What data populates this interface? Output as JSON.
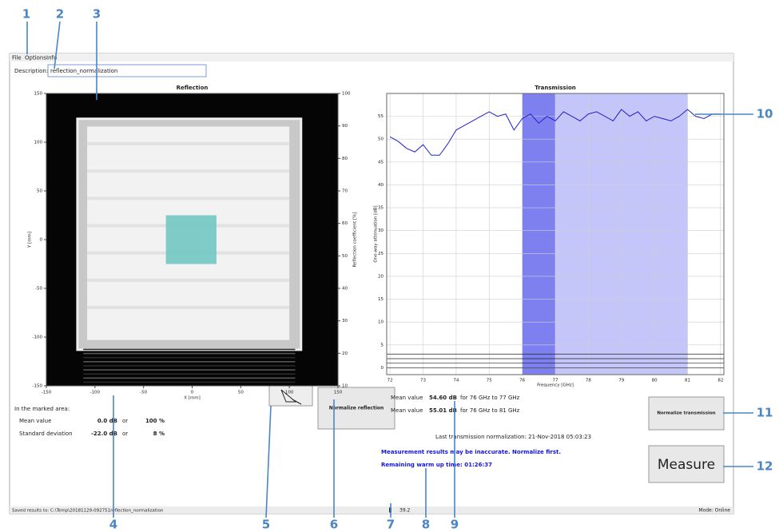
{
  "callouts": [
    "1",
    "2",
    "3",
    "4",
    "5",
    "6",
    "7",
    "8",
    "9",
    "10",
    "11",
    "12"
  ],
  "menu": [
    "File",
    "Options",
    "Info"
  ],
  "description": {
    "label": "Description:",
    "value": "reflection_normalization"
  },
  "chart_data": [
    {
      "type": "heatmap",
      "title": "Reflection",
      "x_label": "X [mm]",
      "y_label": "Y [mm]",
      "colorbar_label": "Reflection coefficient [%]",
      "xlim": [
        -150,
        150
      ],
      "ylim": [
        -150,
        150
      ],
      "xticks": [
        -150,
        -100,
        -50,
        0,
        50,
        100,
        150
      ],
      "yticks": [
        150,
        100,
        50,
        0,
        -50,
        -100,
        -150
      ],
      "colorbar_lim": [
        10,
        100
      ],
      "colorbar_ticks": [
        100,
        90,
        80,
        70,
        60,
        50,
        40,
        30,
        20,
        10
      ],
      "marked_area": {
        "x": [
          -27,
          25
        ],
        "y": [
          -25,
          25
        ],
        "color": "#72c6c2"
      }
    },
    {
      "type": "line",
      "title": "Transmission",
      "x_label": "Frequency [GHz]",
      "y_label": "One-way attenuation [dB]",
      "x": [
        72,
        72.25,
        72.5,
        72.75,
        73,
        73.25,
        73.5,
        73.75,
        74,
        74.25,
        74.5,
        74.75,
        75,
        75.25,
        75.5,
        75.75,
        76,
        76.25,
        76.5,
        76.75,
        77,
        77.25,
        77.5,
        77.75,
        78,
        78.25,
        78.5,
        78.75,
        79,
        79.25,
        79.5,
        79.75,
        80,
        80.25,
        80.5,
        80.75,
        81,
        81.25,
        81.5,
        81.75,
        82
      ],
      "series": [
        {
          "color": "#1f22d0",
          "values": [
            50.5,
            49.5,
            48,
            47.2,
            48.8,
            46.5,
            46.5,
            49,
            52,
            53,
            54,
            55,
            56,
            55,
            55.5,
            52,
            54.5,
            55.5,
            53.5,
            55,
            54,
            56,
            55,
            54,
            55.5,
            56,
            55,
            54,
            56.5,
            55,
            56,
            54,
            55,
            54.5,
            54,
            55,
            56.5,
            55,
            54.5,
            55.5,
            55.5
          ]
        }
      ],
      "xlim": [
        71.9,
        82.1
      ],
      "ylim": [
        -1.5,
        60
      ],
      "xticks": [
        72,
        73,
        74,
        75,
        76,
        77,
        78,
        79,
        80,
        81,
        82
      ],
      "yticks": [
        0,
        5,
        10,
        15,
        20,
        25,
        30,
        35,
        40,
        45,
        50,
        55
      ],
      "grid": true,
      "bands": [
        {
          "from": 76,
          "to": 77,
          "color": "#7f80f0"
        },
        {
          "from": 77,
          "to": 81,
          "color": "#c4c5f8"
        }
      ],
      "hlines": [
        0,
        1,
        2,
        3
      ]
    }
  ],
  "marked_area": {
    "heading": "In the marked area:",
    "rows": [
      [
        "Mean value",
        "0.0 dB",
        "or",
        "100 %"
      ],
      [
        "Standard deviation",
        "-22.0 dB",
        "or",
        "8 %"
      ]
    ]
  },
  "buttons": {
    "normalize_reflection": "Normalize reflection",
    "normalize_transmission": "Normalize transmission",
    "measure": "Measure"
  },
  "transmission_means": [
    [
      "Mean value",
      "54.60 dB",
      "for 76 GHz to 77 GHz"
    ],
    [
      "Mean value",
      "55.01 dB",
      "for 76 GHz to 81 GHz"
    ]
  ],
  "last_normalization": "Last transmission normalization:  21-Nov-2018 05:03:23",
  "warnings": [
    "Measurement results may be inaccurate. Normalize first.",
    "Remaining warm up time: 01:26:37"
  ],
  "status": {
    "saved": "Saved results to: C:\\Temp\\20181129-092751reflection_normalization",
    "temperature": "39.2",
    "mode": "Mode: Online"
  }
}
